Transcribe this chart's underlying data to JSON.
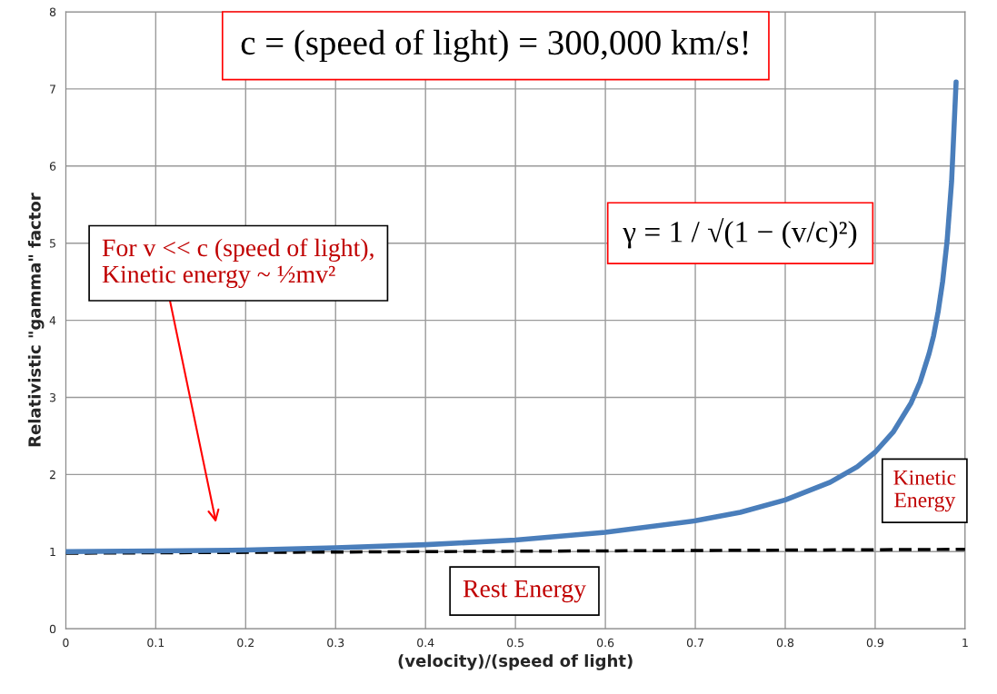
{
  "chart_data": {
    "type": "line",
    "xlabel": "(velocity)/(speed of light)",
    "ylabel": "Relativistic \"gamma\" factor",
    "series": [
      {
        "color": "#4a7ebb",
        "line_style": "solid",
        "x": [
          0,
          0.1,
          0.2,
          0.3,
          0.4,
          0.5,
          0.6,
          0.7,
          0.75,
          0.8,
          0.85,
          0.88,
          0.9,
          0.92,
          0.94,
          0.95,
          0.96,
          0.965,
          0.97,
          0.975,
          0.98,
          0.985,
          0.99
        ],
        "values": [
          1,
          1.01,
          1.02,
          1.05,
          1.09,
          1.15,
          1.25,
          1.4,
          1.51,
          1.67,
          1.9,
          2.1,
          2.29,
          2.55,
          2.93,
          3.2,
          3.57,
          3.8,
          4.11,
          4.5,
          5.03,
          5.8,
          7.09
        ]
      },
      {
        "color": "#000000",
        "line_style": "dashed",
        "x": [
          0,
          1
        ],
        "values": [
          0.98,
          1.03
        ]
      }
    ],
    "xlim": [
      0,
      1
    ],
    "ylim": [
      0,
      8
    ],
    "xticks": [
      0,
      0.1,
      0.2,
      0.3,
      0.4,
      0.5,
      0.6,
      0.7,
      0.8,
      0.9,
      1
    ],
    "yticks": [
      0,
      1,
      2,
      3,
      4,
      5,
      6,
      7,
      8
    ],
    "grid": true,
    "legend": false,
    "annotations": [
      "c = (speed of light) = 300,000 km/s!",
      "γ = 1 / √(1 − (v/c)²)",
      "For v << c (speed of light),\nKinetic energy ~ ½mv²",
      "Kinetic\nEnergy",
      "Rest Energy"
    ]
  }
}
